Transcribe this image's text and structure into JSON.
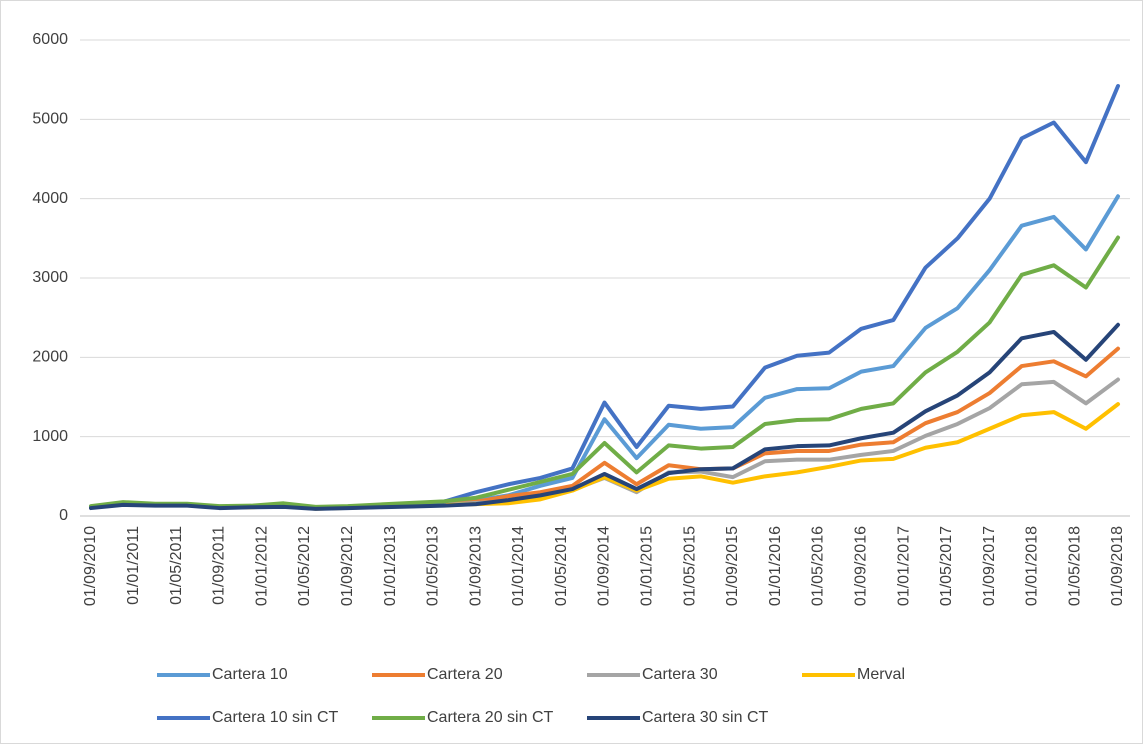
{
  "chart_data": {
    "type": "line",
    "x": [
      "01/09/2010",
      "01/12/2010",
      "01/03/2011",
      "01/06/2011",
      "01/09/2011",
      "01/12/2011",
      "01/03/2012",
      "01/06/2012",
      "01/09/2012",
      "01/12/2012",
      "01/03/2013",
      "01/06/2013",
      "01/09/2013",
      "01/12/2013",
      "01/03/2014",
      "01/06/2014",
      "01/09/2014",
      "01/12/2014",
      "01/03/2015",
      "01/06/2015",
      "01/09/2015",
      "01/12/2015",
      "01/03/2016",
      "01/06/2016",
      "01/09/2016",
      "01/12/2016",
      "01/03/2017",
      "01/06/2017",
      "01/09/2017",
      "01/12/2017",
      "01/03/2018",
      "01/06/2018",
      "01/09/2018"
    ],
    "xticks": [
      "01/09/2010",
      "01/01/2011",
      "01/05/2011",
      "01/09/2011",
      "01/01/2012",
      "01/05/2012",
      "01/09/2012",
      "01/01/2013",
      "01/05/2013",
      "01/09/2013",
      "01/01/2014",
      "01/05/2014",
      "01/09/2014",
      "01/01/2015",
      "01/05/2015",
      "01/09/2015",
      "01/01/2016",
      "01/05/2016",
      "01/09/2016",
      "01/01/2017",
      "01/05/2017",
      "01/09/2017",
      "01/01/2018",
      "01/05/2018",
      "01/09/2018"
    ],
    "ylim": [
      0,
      6000
    ],
    "yticks": [
      0,
      1000,
      2000,
      3000,
      4000,
      5000,
      6000
    ],
    "grid": true,
    "series": [
      {
        "name": "Cartera 10",
        "color": "#5b9bd5",
        "values": [
          115,
          165,
          150,
          148,
          118,
          122,
          145,
          108,
          118,
          135,
          155,
          165,
          195,
          260,
          380,
          480,
          1220,
          730,
          1150,
          1100,
          1120,
          1490,
          1600,
          1610,
          1820,
          1890,
          2370,
          2620,
          3100,
          3660,
          3770,
          3360,
          4030
        ]
      },
      {
        "name": "Cartera 20",
        "color": "#ed7d31",
        "values": [
          110,
          155,
          140,
          140,
          110,
          115,
          135,
          100,
          110,
          125,
          140,
          150,
          180,
          250,
          300,
          380,
          670,
          400,
          640,
          590,
          600,
          790,
          820,
          820,
          900,
          930,
          1170,
          1310,
          1550,
          1890,
          1950,
          1760,
          2110
        ]
      },
      {
        "name": "Cartera 30",
        "color": "#a5a5a5",
        "values": [
          105,
          150,
          135,
          135,
          105,
          112,
          128,
          95,
          105,
          118,
          130,
          140,
          165,
          180,
          240,
          330,
          480,
          300,
          550,
          560,
          490,
          690,
          710,
          710,
          770,
          820,
          1010,
          1160,
          1360,
          1660,
          1690,
          1420,
          1720
        ]
      },
      {
        "name": "Merval",
        "color": "#ffc000",
        "values": [
          105,
          145,
          135,
          135,
          105,
          110,
          125,
          92,
          102,
          115,
          125,
          135,
          150,
          160,
          210,
          320,
          490,
          320,
          470,
          500,
          420,
          500,
          550,
          620,
          700,
          720,
          860,
          930,
          1100,
          1270,
          1310,
          1100,
          1410
        ]
      },
      {
        "name": "Cartera 10 sin CT",
        "color": "#4472c4",
        "values": [
          120,
          170,
          150,
          150,
          120,
          125,
          150,
          110,
          120,
          140,
          160,
          180,
          300,
          400,
          480,
          600,
          1430,
          870,
          1390,
          1350,
          1380,
          1870,
          2020,
          2060,
          2360,
          2470,
          3130,
          3500,
          4000,
          4760,
          4960,
          4460,
          5420
        ]
      },
      {
        "name": "Cartera 20 sin CT",
        "color": "#70ad47",
        "values": [
          125,
          175,
          155,
          155,
          125,
          130,
          160,
          115,
          125,
          145,
          165,
          185,
          230,
          330,
          430,
          530,
          920,
          550,
          890,
          850,
          870,
          1160,
          1210,
          1220,
          1350,
          1420,
          1810,
          2070,
          2440,
          3040,
          3160,
          2880,
          3510
        ]
      },
      {
        "name": "Cartera 30 sin CT",
        "color": "#264478",
        "values": [
          100,
          140,
          130,
          130,
          100,
          110,
          115,
          90,
          100,
          110,
          120,
          130,
          150,
          200,
          260,
          340,
          530,
          340,
          540,
          590,
          600,
          840,
          880,
          890,
          980,
          1050,
          1320,
          1520,
          1810,
          2240,
          2320,
          1970,
          2410
        ]
      }
    ]
  }
}
